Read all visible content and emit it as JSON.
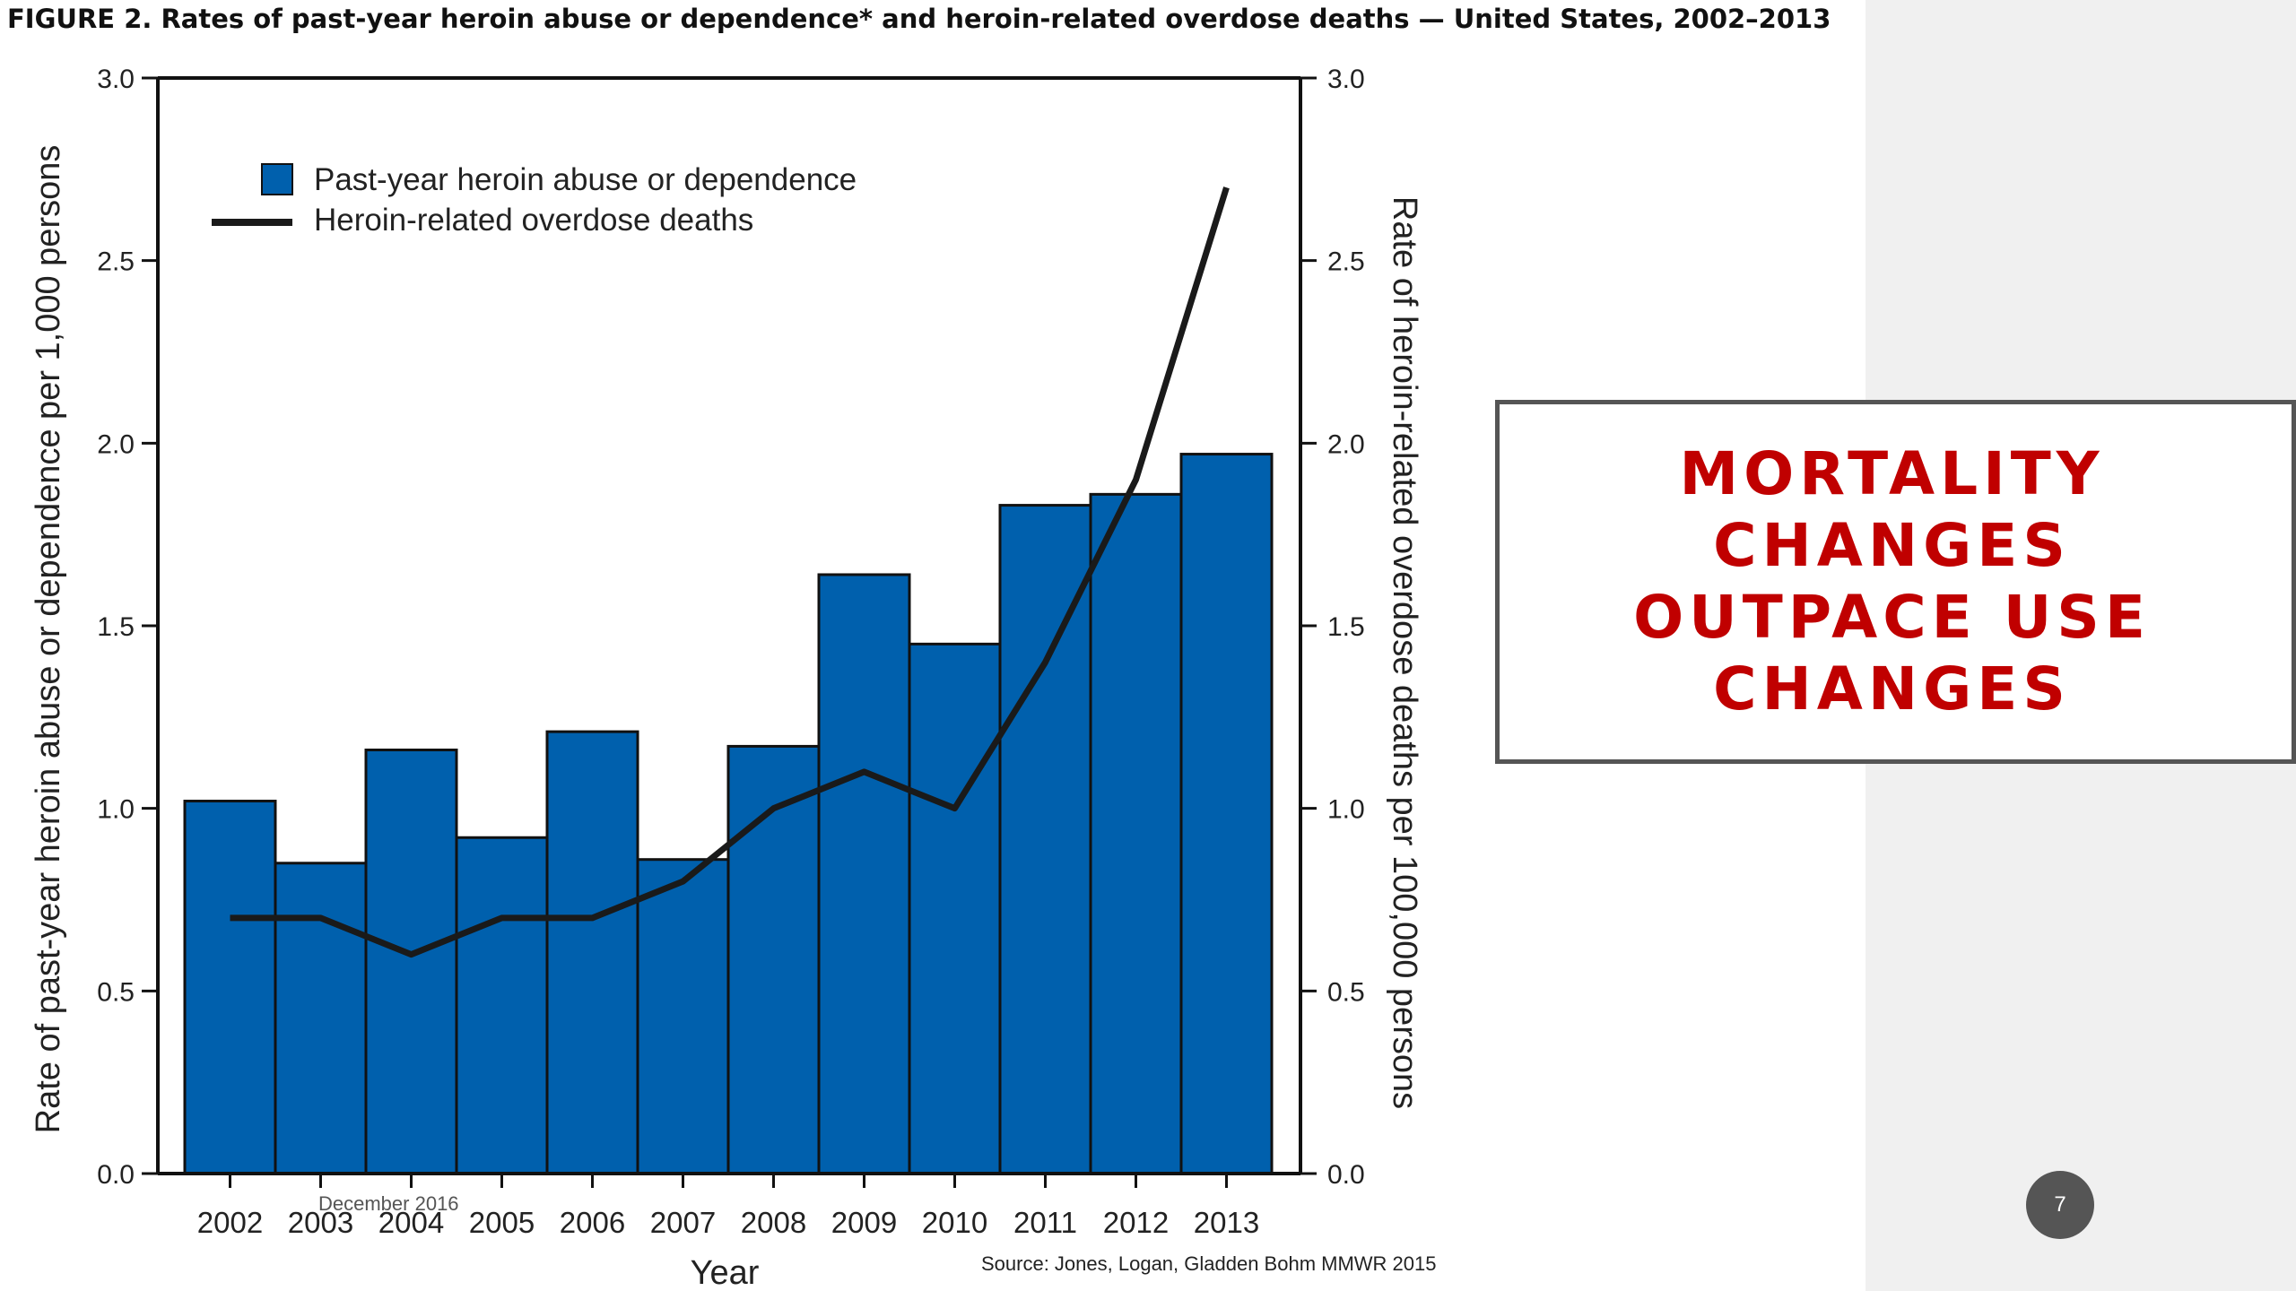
{
  "figure": {
    "title": "FIGURE 2. Rates of past-year heroin abuse or dependence* and heroin-related overdose deaths — United States, 2002–2013"
  },
  "chart_data": {
    "type": "bar",
    "categories": [
      "2002",
      "2003",
      "2004",
      "2005",
      "2006",
      "2007",
      "2008",
      "2009",
      "2010",
      "2011",
      "2012",
      "2013"
    ],
    "series": [
      {
        "name": "Past-year heroin abuse or dependence",
        "type": "bar",
        "axis": "left",
        "color": "#0060ad",
        "values": [
          1.02,
          0.85,
          1.16,
          0.92,
          1.21,
          0.86,
          1.17,
          1.64,
          1.45,
          1.83,
          1.86,
          1.97
        ]
      },
      {
        "name": "Heroin-related overdose deaths",
        "type": "line",
        "axis": "right",
        "color": "#1a1a1a",
        "values": [
          0.7,
          0.7,
          0.6,
          0.7,
          0.7,
          0.8,
          1.0,
          1.1,
          1.0,
          1.4,
          1.9,
          2.7
        ]
      }
    ],
    "xlabel": "Year",
    "ylabel": "Rate of past-year heroin abuse or dependence per 1,000 persons",
    "y2label": "Rate of heroin-related overdose deaths per 100,000 persons",
    "ylim": [
      0,
      3.0
    ],
    "y2lim": [
      0,
      3.0
    ],
    "yticks": [
      "0.0",
      "0.5",
      "1.0",
      "1.5",
      "2.0",
      "2.5",
      "3.0"
    ],
    "grid": false,
    "legend_position": "top-left"
  },
  "callout": {
    "text": "MORTALITY CHANGES OUTPACE USE CHANGES",
    "color": "#c00000"
  },
  "footer": {
    "date": "December 2016",
    "source": "Source: Jones, Logan, Gladden Bohm MMWR 2015",
    "page_number": "7"
  }
}
